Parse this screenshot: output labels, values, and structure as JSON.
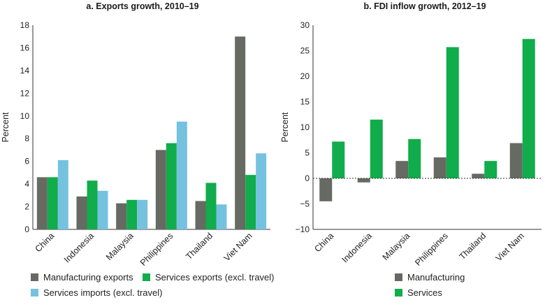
{
  "chart_data": [
    {
      "type": "bar",
      "title": "a. Exports growth, 2010–19",
      "ylabel": "Percent",
      "xlabel": "",
      "ylim": [
        0,
        18
      ],
      "yticks": [
        0,
        2,
        4,
        6,
        8,
        10,
        12,
        14,
        16,
        18
      ],
      "categories": [
        "China",
        "Indonesia",
        "Malaysia",
        "Philippines",
        "Thailand",
        "Viet Nam"
      ],
      "series": [
        {
          "name": "Manufacturing exports",
          "color": "#676a63",
          "values": [
            4.6,
            2.9,
            2.3,
            7.0,
            2.5,
            17.0
          ]
        },
        {
          "name": "Services exports (excl. travel)",
          "color": "#11ac4b",
          "values": [
            4.6,
            4.3,
            2.6,
            7.6,
            4.1,
            4.8
          ]
        },
        {
          "name": "Services imports (excl. travel)",
          "color": "#74c2df",
          "values": [
            6.1,
            3.4,
            2.6,
            9.5,
            2.2,
            6.7
          ]
        }
      ],
      "legend": "bottom"
    },
    {
      "type": "bar",
      "title": "b. FDI inflow growth, 2012–19",
      "ylabel": "Percent",
      "xlabel": "",
      "ylim": [
        -10,
        30
      ],
      "yticks": [
        -10,
        -5,
        0,
        5,
        10,
        15,
        20,
        25,
        30
      ],
      "categories": [
        "China",
        "Indonesia",
        "Malaysia",
        "Philippines",
        "Thailand",
        "Viet Nam"
      ],
      "series": [
        {
          "name": "Manufacturing",
          "color": "#676a63",
          "values": [
            -4.5,
            -0.8,
            3.4,
            4.1,
            0.9,
            6.9
          ]
        },
        {
          "name": "Services",
          "color": "#11ac4b",
          "values": [
            7.2,
            11.5,
            7.7,
            25.7,
            3.4,
            27.3
          ]
        }
      ],
      "legend": "bottom"
    }
  ]
}
